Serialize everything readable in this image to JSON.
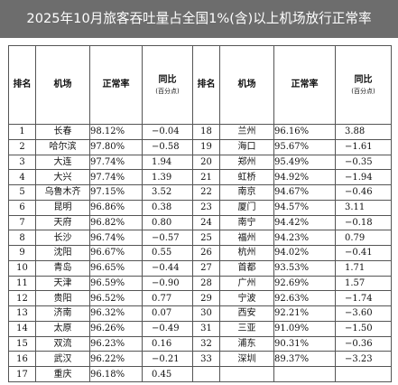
{
  "title": "2025年10月旅客吞吐量占全国1%(含)以上机场放行正常率",
  "headers": {
    "rank": "排名",
    "airport": "机场",
    "rate": "正常率",
    "yoy": "同比",
    "yoy_unit": "(百分点)"
  },
  "left_rows": [
    {
      "rank": "1",
      "airport": "长春",
      "rate": "98.12%",
      "yoy": "−0.04"
    },
    {
      "rank": "2",
      "airport": "哈尔滨",
      "rate": "97.80%",
      "yoy": "−0.58"
    },
    {
      "rank": "3",
      "airport": "大连",
      "rate": "97.74%",
      "yoy": "1.94"
    },
    {
      "rank": "4",
      "airport": "大兴",
      "rate": "97.74%",
      "yoy": "1.39"
    },
    {
      "rank": "5",
      "airport": "乌鲁木齐",
      "rate": "97.15%",
      "yoy": "3.52"
    },
    {
      "rank": "6",
      "airport": "昆明",
      "rate": "96.86%",
      "yoy": "0.38"
    },
    {
      "rank": "7",
      "airport": "天府",
      "rate": "96.82%",
      "yoy": "0.80"
    },
    {
      "rank": "8",
      "airport": "长沙",
      "rate": "96.74%",
      "yoy": "−0.57"
    },
    {
      "rank": "9",
      "airport": "沈阳",
      "rate": "96.67%",
      "yoy": "0.55"
    },
    {
      "rank": "10",
      "airport": "青岛",
      "rate": "96.65%",
      "yoy": "−0.44"
    },
    {
      "rank": "11",
      "airport": "天津",
      "rate": "96.59%",
      "yoy": "−0.90"
    },
    {
      "rank": "12",
      "airport": "贵阳",
      "rate": "96.52%",
      "yoy": "0.77"
    },
    {
      "rank": "13",
      "airport": "济南",
      "rate": "96.32%",
      "yoy": "0.07"
    },
    {
      "rank": "14",
      "airport": "太原",
      "rate": "96.26%",
      "yoy": "−0.49"
    },
    {
      "rank": "15",
      "airport": "双流",
      "rate": "96.23%",
      "yoy": "0.16"
    },
    {
      "rank": "16",
      "airport": "武汉",
      "rate": "96.22%",
      "yoy": "−0.21"
    },
    {
      "rank": "17",
      "airport": "重庆",
      "rate": "96.18%",
      "yoy": "0.45"
    }
  ],
  "right_rows": [
    {
      "rank": "18",
      "airport": "兰州",
      "rate": "96.16%",
      "yoy": "3.88"
    },
    {
      "rank": "19",
      "airport": "海口",
      "rate": "95.67%",
      "yoy": "−1.61"
    },
    {
      "rank": "20",
      "airport": "郑州",
      "rate": "95.49%",
      "yoy": "−0.35"
    },
    {
      "rank": "21",
      "airport": "虹桥",
      "rate": "94.92%",
      "yoy": "−1.94"
    },
    {
      "rank": "22",
      "airport": "南京",
      "rate": "94.67%",
      "yoy": "−0.46"
    },
    {
      "rank": "23",
      "airport": "厦门",
      "rate": "94.57%",
      "yoy": "3.11"
    },
    {
      "rank": "24",
      "airport": "南宁",
      "rate": "94.42%",
      "yoy": "−0.18"
    },
    {
      "rank": "25",
      "airport": "福州",
      "rate": "94.23%",
      "yoy": "0.79"
    },
    {
      "rank": "26",
      "airport": "杭州",
      "rate": "94.02%",
      "yoy": "−0.41"
    },
    {
      "rank": "27",
      "airport": "首都",
      "rate": "93.53%",
      "yoy": "1.71"
    },
    {
      "rank": "28",
      "airport": "广州",
      "rate": "92.69%",
      "yoy": "1.57"
    },
    {
      "rank": "29",
      "airport": "宁波",
      "rate": "92.63%",
      "yoy": "−1.74"
    },
    {
      "rank": "30",
      "airport": "西安",
      "rate": "92.21%",
      "yoy": "−3.60"
    },
    {
      "rank": "31",
      "airport": "三亚",
      "rate": "91.09%",
      "yoy": "−1.50"
    },
    {
      "rank": "32",
      "airport": "浦东",
      "rate": "90.31%",
      "yoy": "−0.36"
    },
    {
      "rank": "33",
      "airport": "深圳",
      "rate": "89.37%",
      "yoy": "−3.23"
    },
    {
      "rank": "",
      "airport": "",
      "rate": "",
      "yoy": ""
    }
  ]
}
